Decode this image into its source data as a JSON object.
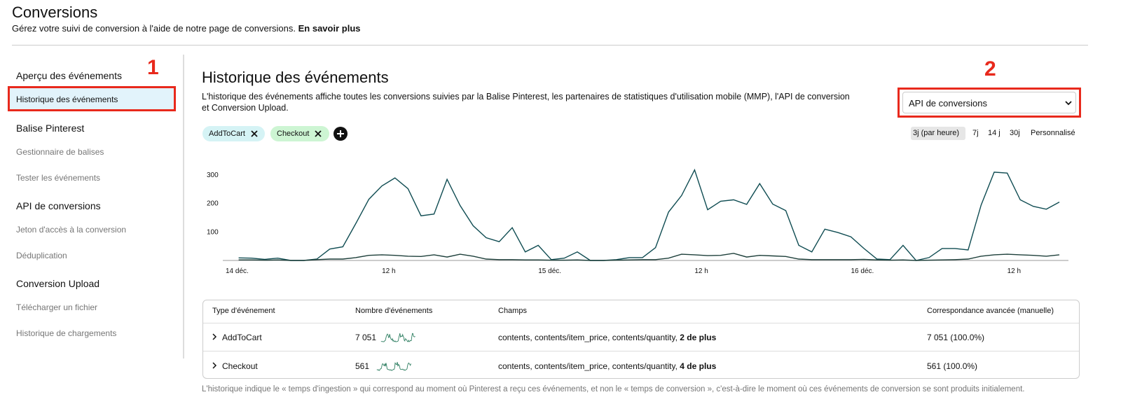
{
  "header": {
    "title": "Conversions",
    "subtitle": "Gérez votre suivi de conversion à l'aide de notre page de conversions.",
    "link": "En savoir plus"
  },
  "sidebar": {
    "sections": [
      {
        "title": "Aperçu des événements",
        "items": [
          "Historique des événements"
        ]
      },
      {
        "title": "Balise Pinterest",
        "items": [
          "Gestionnaire de balises",
          "Tester les événements"
        ]
      },
      {
        "title": "API de conversions",
        "items": [
          "Jeton d'accès à la conversion",
          "Déduplication"
        ]
      },
      {
        "title": "Conversion Upload",
        "items": [
          "Télécharger un fichier",
          "Historique de chargements"
        ]
      }
    ]
  },
  "annotations": [
    "1",
    "2"
  ],
  "main": {
    "title": "Historique des événements",
    "description": [
      "L'historique des événements affiche toutes les conversions suivies par la Balise Pinterest, les partenaires de statistiques d'utilisation mobile (MMP), l'API de conversion",
      "et Conversion Upload."
    ],
    "dropdown": "API de conversions",
    "ranges": [
      "3j (par heure)",
      "7j",
      "14 j",
      "30j",
      "Personnalisé"
    ]
  },
  "chart_data": {
    "type": "line",
    "x": [
      1,
      2,
      3,
      4,
      5,
      6,
      7,
      8,
      9,
      10,
      11,
      12,
      13,
      14,
      15,
      16,
      17,
      18,
      19,
      20,
      21,
      22,
      23,
      24,
      25,
      26,
      27,
      28,
      29,
      30,
      31,
      32,
      33,
      34,
      35,
      36,
      37,
      38,
      39,
      40,
      41,
      42,
      43,
      44,
      45,
      46,
      47,
      48,
      49,
      50,
      51,
      52,
      53,
      54,
      55,
      56,
      57,
      58,
      59,
      60,
      61,
      62,
      63,
      64
    ],
    "series": [
      {
        "name": "AddToCart",
        "color": "#0f4c52",
        "values": [
          9,
          8,
          4,
          8,
          0,
          0,
          5,
          40,
          48,
          130,
          215,
          262,
          290,
          252,
          157,
          163,
          285,
          193,
          122,
          80,
          66,
          115,
          30,
          53,
          3,
          8,
          30,
          0,
          0,
          3,
          10,
          10,
          45,
          170,
          228,
          318,
          178,
          208,
          213,
          197,
          270,
          198,
          175,
          53,
          30,
          110,
          98,
          83,
          42,
          5,
          3,
          53,
          0,
          10,
          42,
          42,
          37,
          195,
          310,
          307,
          213,
          190,
          180,
          205
        ]
      },
      {
        "name": "Checkout",
        "color": "#1d3f3a",
        "values": [
          2,
          2,
          1,
          2,
          0,
          0,
          3,
          5,
          5,
          10,
          18,
          20,
          18,
          15,
          14,
          20,
          12,
          22,
          15,
          5,
          3,
          3,
          2,
          2,
          1,
          1,
          2,
          0,
          0,
          1,
          2,
          3,
          3,
          8,
          22,
          20,
          17,
          18,
          25,
          12,
          18,
          16,
          14,
          5,
          3,
          3,
          3,
          3,
          4,
          2,
          1,
          2,
          0,
          1,
          2,
          3,
          5,
          15,
          20,
          22,
          20,
          18,
          15,
          20
        ]
      }
    ],
    "xlim": [
      0,
      64.7
    ],
    "xticks": [
      {
        "value": 0,
        "label": "14 déc."
      },
      {
        "value": 12,
        "label": "12 h"
      },
      {
        "value": 24,
        "label": "15 déc."
      },
      {
        "value": 36,
        "label": "12 h"
      },
      {
        "value": 48,
        "label": "16 déc."
      },
      {
        "value": 60,
        "label": "12 h"
      }
    ],
    "ylim": [
      0,
      330
    ],
    "yticks": [
      100,
      200,
      300
    ]
  },
  "table": {
    "columns": [
      "Type d'événement",
      "Nombre d'événements",
      "Champs",
      "Correspondance avancée (manuelle)"
    ],
    "rows": [
      {
        "count": "7 051",
        "fields": "contents, contents/item_price, contents/quantity,",
        "more": "2 de plus",
        "match": "7 051 (100.0%)"
      },
      {
        "count": "561",
        "fields": "contents, contents/item_price, contents/quantity,",
        "more": "4 de plus",
        "match": "561 (100.0%)"
      }
    ]
  },
  "note": "L'historique indique le « temps d'ingestion » qui correspond au moment où Pinterest a reçu ces événements, et non le « temps de conversion », c'est-à-dire le moment où ces événements de conversion se sont produits initialement."
}
